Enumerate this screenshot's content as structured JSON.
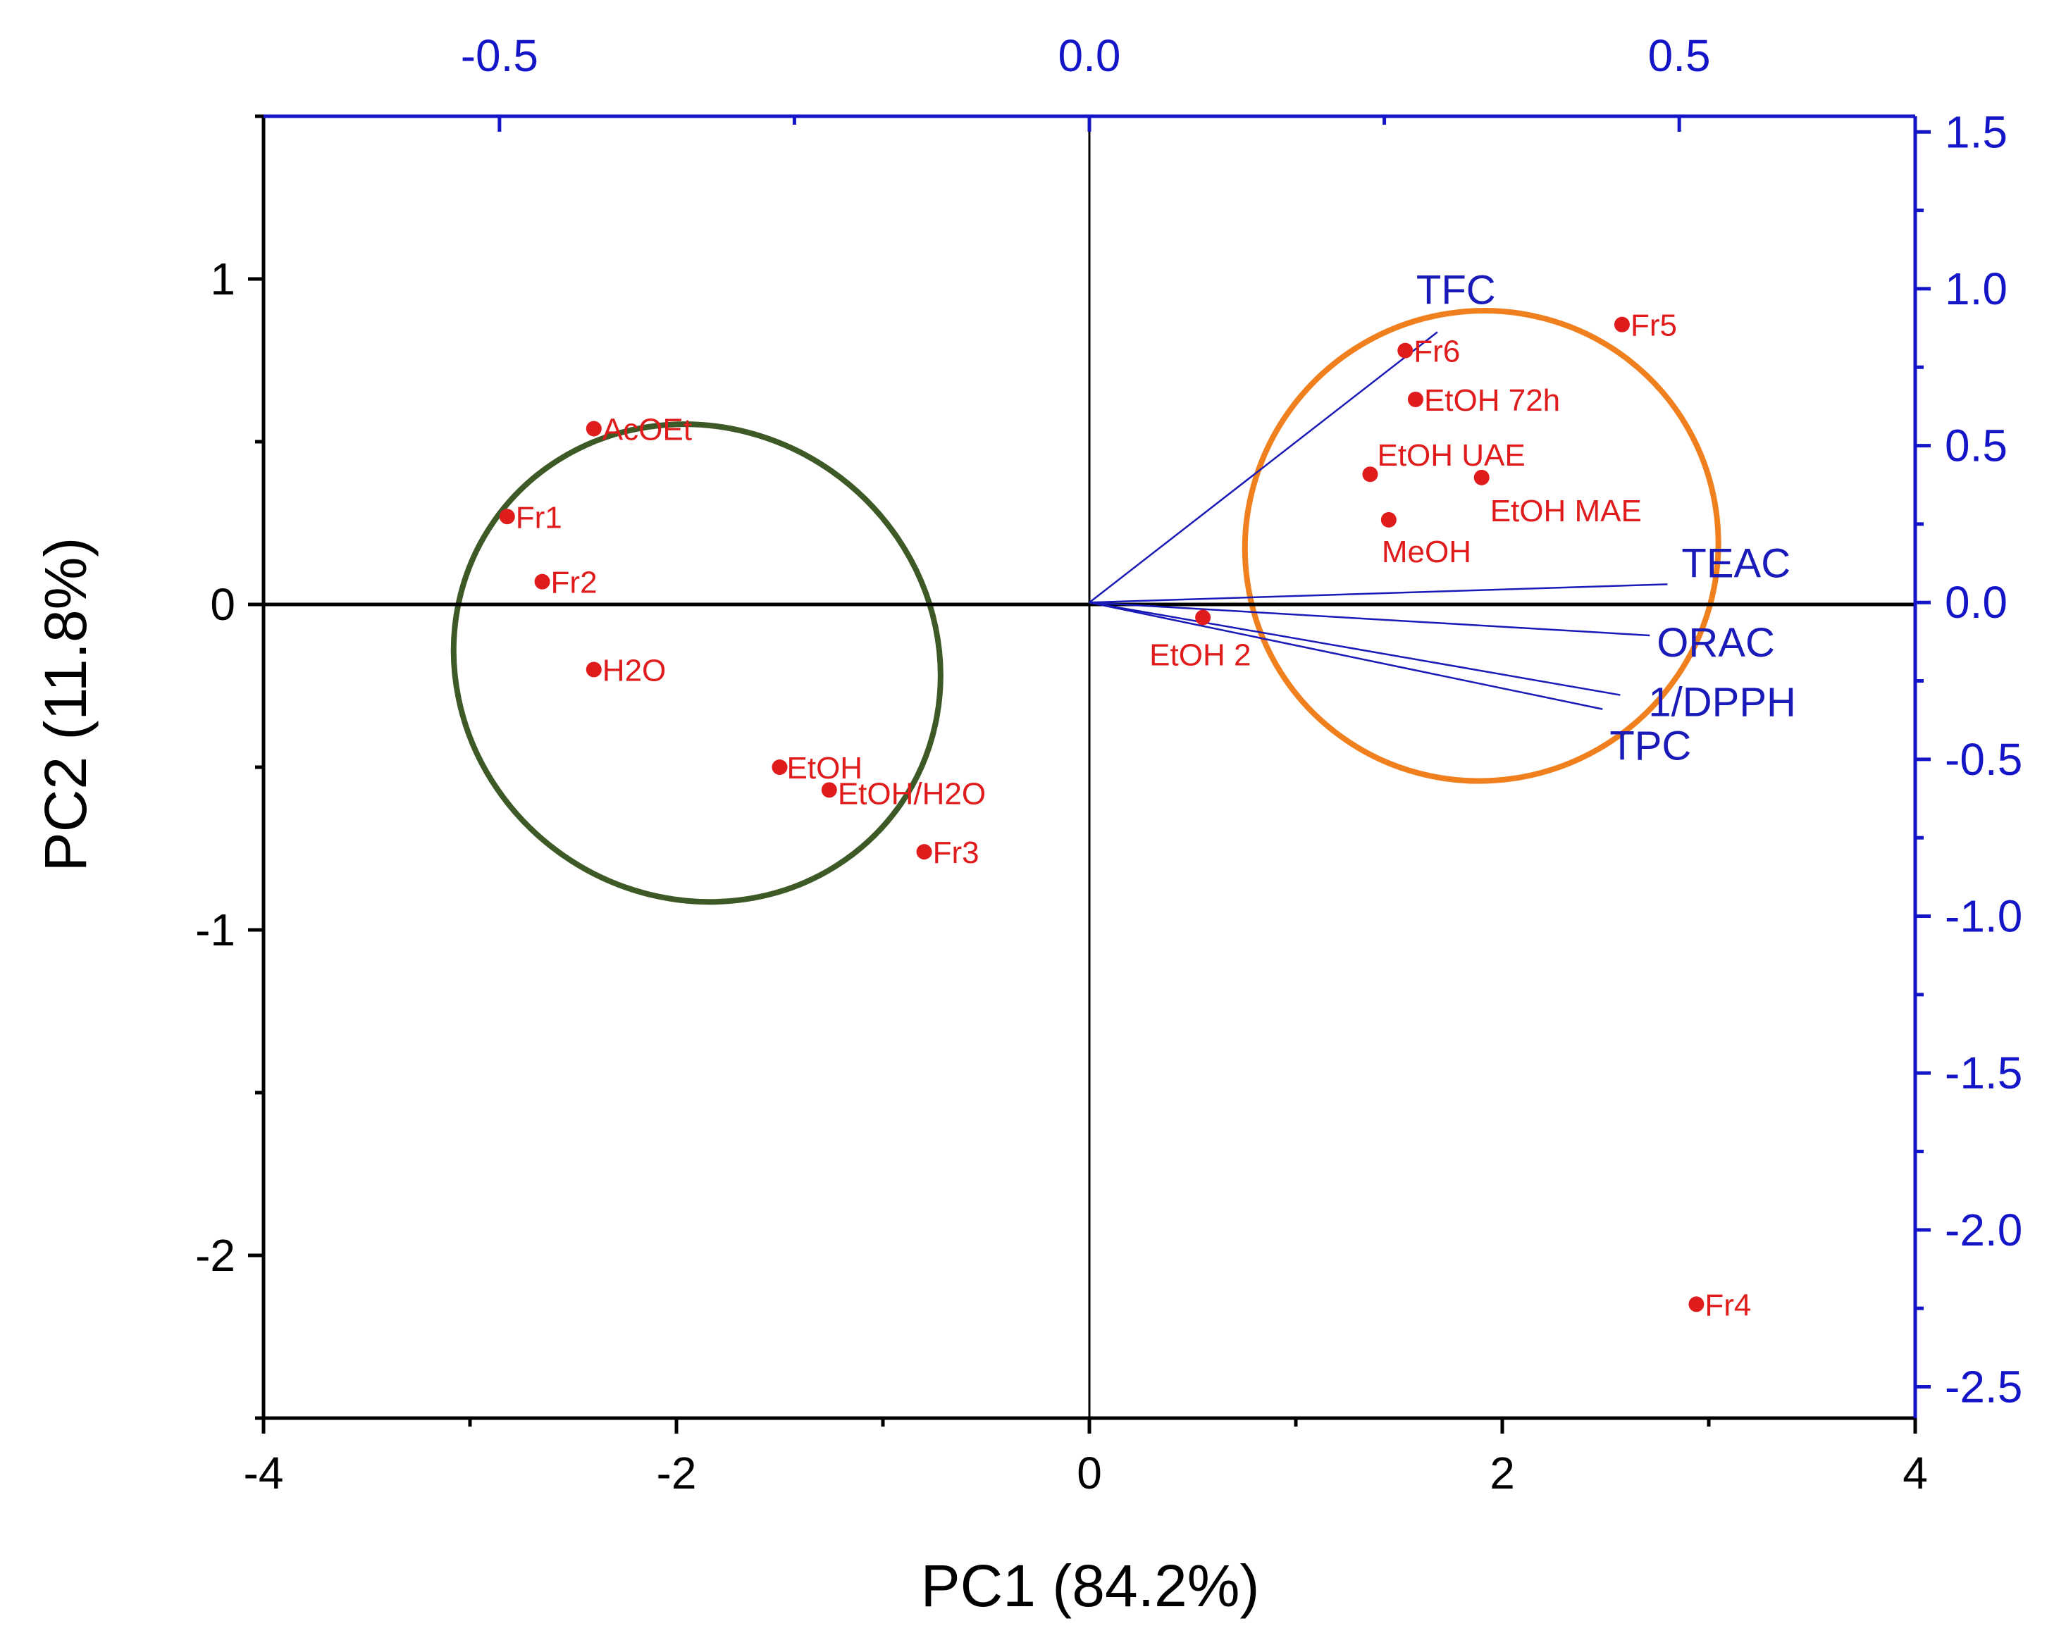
{
  "chart_data": {
    "type": "scatter",
    "title": "",
    "xlabel": "PC1 (84.2%)",
    "ylabel": "PC2 (11.8%)",
    "xlim": [
      -4,
      4
    ],
    "ylim": [
      -2.5,
      1.5
    ],
    "x_ticks": [
      "-4",
      "-2",
      "0",
      "2",
      "4"
    ],
    "y_ticks": [
      "-2",
      "-1",
      "0",
      "1"
    ],
    "top_axis": {
      "lim": [
        -0.7,
        0.7
      ],
      "ticks": [
        "-0.5",
        "0.0",
        "0.5"
      ]
    },
    "right_axis": {
      "lim": [
        -2.6,
        1.55
      ],
      "ticks": [
        "1.5",
        "1.0",
        "0.5",
        "0.0",
        "-0.5",
        "-1.0",
        "-1.5",
        "-2.0",
        "-2.5"
      ]
    },
    "colors": {
      "scores": "#e01b1b",
      "loadings": "#1a1ab8",
      "group_left": "#3d5a26",
      "group_right": "#f07f1e",
      "axes": "#000000",
      "secondary_axes": "#1515c8"
    },
    "scores": [
      {
        "label": "AcOEt",
        "x": -2.4,
        "y": 0.54
      },
      {
        "label": "Fr1",
        "x": -2.82,
        "y": 0.27
      },
      {
        "label": "Fr2",
        "x": -2.65,
        "y": 0.07
      },
      {
        "label": "H2O",
        "x": -2.4,
        "y": -0.2
      },
      {
        "label": "EtOH",
        "x": -1.5,
        "y": -0.5
      },
      {
        "label": "EtOH/H2O",
        "x": -1.26,
        "y": -0.57
      },
      {
        "label": "Fr3",
        "x": -0.8,
        "y": -0.76
      },
      {
        "label": "Fr6",
        "x": 1.53,
        "y": 0.78
      },
      {
        "label": "EtOH 72h",
        "x": 1.58,
        "y": 0.63
      },
      {
        "label": "Fr5",
        "x": 2.58,
        "y": 0.86
      },
      {
        "label": "EtOH UAE",
        "x": 1.36,
        "y": 0.4
      },
      {
        "label": "EtOH MAE",
        "x": 1.9,
        "y": 0.39
      },
      {
        "label": "MeOH",
        "x": 1.45,
        "y": 0.26
      },
      {
        "label": "EtOH 2",
        "x": 0.55,
        "y": -0.04
      },
      {
        "label": "Fr4",
        "x": 2.94,
        "y": -2.15
      }
    ],
    "loadings": [
      {
        "label": "TFC",
        "x": 0.295,
        "y": 0.862
      },
      {
        "label": "TEAC",
        "x": 0.49,
        "y": 0.058
      },
      {
        "label": "ORAC",
        "x": 0.475,
        "y": -0.105
      },
      {
        "label": "1/DPPH",
        "x": 0.45,
        "y": -0.295
      },
      {
        "label": "TPC",
        "x": 0.435,
        "y": -0.34
      }
    ],
    "groups": [
      {
        "name": "left",
        "color": "#3d5a26",
        "center": [
          -1.9,
          -0.18
        ],
        "radii": [
          1.2,
          0.72
        ],
        "rotation_deg": 35
      },
      {
        "name": "right",
        "color": "#f07f1e",
        "center": [
          1.9,
          0.18
        ],
        "radii": [
          1.15,
          0.72
        ],
        "rotation_deg": -30
      }
    ]
  }
}
